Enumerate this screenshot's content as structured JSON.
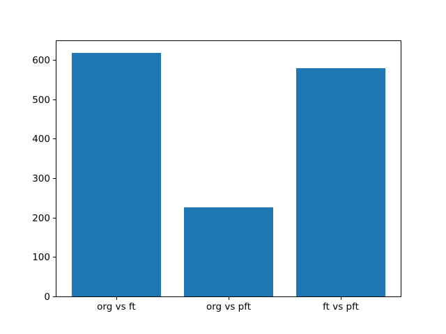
{
  "chart_data": {
    "type": "bar",
    "categories": [
      "org vs ft",
      "org vs pft",
      "ft vs pft"
    ],
    "values": [
      620,
      227,
      580
    ],
    "title": "",
    "xlabel": "",
    "ylabel": "",
    "ylim": [
      0,
      651
    ],
    "yticks": [
      0,
      100,
      200,
      300,
      400,
      500,
      600
    ],
    "ytick_labels": [
      "0",
      "100",
      "200",
      "300",
      "400",
      "500",
      "600"
    ],
    "bar_color": "#1f77b4",
    "background_color": "#ffffff",
    "spine_color": "#000000",
    "grid": false,
    "legend_position": "none",
    "bar_width_fraction": 0.8
  }
}
